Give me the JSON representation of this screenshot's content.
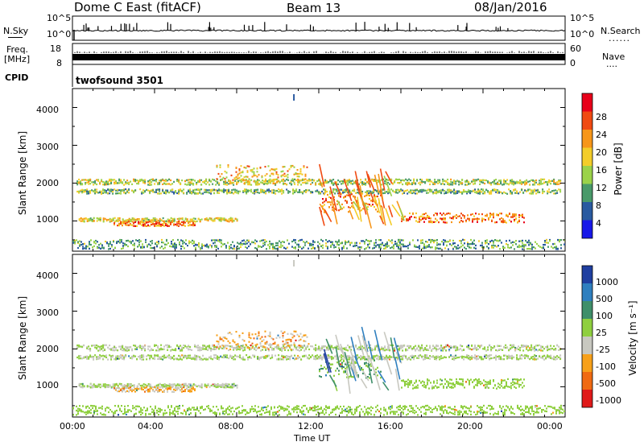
{
  "header": {
    "station": "Dome C East (fitACF)",
    "beam": "Beam 13",
    "date": "08/Jan/2016"
  },
  "strips": {
    "nsky_label": "N.Sky",
    "nsky_ticks": [
      "10^5",
      "10^0"
    ],
    "nsearch_label": "N.Search",
    "nsearch_ticks": [
      "10^5",
      "10^0"
    ],
    "freq_label_1": "Freq.",
    "freq_label_2": "[MHz]",
    "freq_ticks": [
      "18",
      "8"
    ],
    "nave_label": "Nave",
    "nave_ticks": [
      "60",
      "0"
    ],
    "cpid_label": "CPID",
    "cpid_value": "twofsound 3501",
    "dots": "......"
  },
  "axes": {
    "ylabel": "Slant Range [km]",
    "yticks": [
      "4000",
      "3000",
      "2000",
      "1000"
    ],
    "xticks": [
      "00:00",
      "04:00",
      "08:00",
      "12:00",
      "16:00",
      "20:00",
      "00:00"
    ],
    "xlabel": "Time UT"
  },
  "colorbars": {
    "power": {
      "label": "Power [dB]",
      "ticks": [
        "28",
        "24",
        "20",
        "16",
        "12",
        "8",
        "4"
      ],
      "colors": [
        "#e8001a",
        "#f04a12",
        "#f7961a",
        "#f3cd2a",
        "#9bd24a",
        "#4a9a6a",
        "#2a5aa0",
        "#1818e8"
      ]
    },
    "velocity": {
      "label": "Velocity [m s⁻¹]",
      "ticks": [
        "1000",
        "500",
        "100",
        "25",
        "-25",
        "-100",
        "-500",
        "-1000"
      ],
      "colors": [
        "#1f3fa0",
        "#2f7fbf",
        "#3f8f6a",
        "#8fcf3f",
        "#c8c8c0",
        "#f7a01a",
        "#f06a12",
        "#e01a1a"
      ]
    }
  },
  "chart_data": [
    {
      "type": "heatmap",
      "title": "Power [dB]",
      "xlabel": "Time UT",
      "ylabel": "Slant Range [km]",
      "xlim": [
        "00:00",
        "00:00"
      ],
      "ylim": [
        200,
        4500
      ],
      "colorbar": {
        "label": "Power [dB]",
        "range": [
          0,
          30
        ],
        "ticks": [
          4,
          8,
          12,
          16,
          20,
          24,
          28
        ]
      },
      "bands": [
        {
          "t_start": 0.2,
          "t_end": 23.8,
          "r_center": 1800,
          "r_width": 120,
          "value": 12
        },
        {
          "t_start": 0.2,
          "t_end": 23.8,
          "r_center": 2050,
          "r_width": 150,
          "value": 14
        },
        {
          "t_start": 0.3,
          "t_end": 8.0,
          "r_center": 1050,
          "r_width": 100,
          "value": 16
        },
        {
          "t_start": 2.0,
          "t_end": 6.0,
          "r_center": 950,
          "r_width": 130,
          "value": 22
        },
        {
          "t_start": 7.0,
          "t_end": 11.5,
          "r_center": 2250,
          "r_width": 500,
          "value": 18
        },
        {
          "t_start": 12.0,
          "t_end": 15.0,
          "r_center": 1500,
          "r_width": 500,
          "value": 22
        },
        {
          "t_start": 16.0,
          "t_end": 22.0,
          "r_center": 1100,
          "r_width": 250,
          "value": 22
        },
        {
          "t_start": 0.0,
          "t_end": 24.0,
          "r_center": 400,
          "r_width": 250,
          "value": 10
        }
      ]
    },
    {
      "type": "heatmap",
      "title": "Velocity [m s⁻¹]",
      "xlabel": "Time UT",
      "ylabel": "Slant Range [km]",
      "xlim": [
        "00:00",
        "00:00"
      ],
      "ylim": [
        200,
        4500
      ],
      "colorbar": {
        "label": "Velocity [m s⁻¹]",
        "range": [
          -1000,
          1000
        ],
        "ticks": [
          -1000,
          -500,
          -100,
          -25,
          25,
          100,
          500,
          1000
        ]
      },
      "bands": [
        {
          "t_start": 0.2,
          "t_end": 23.8,
          "r_center": 1800,
          "r_width": 120,
          "value": 0
        },
        {
          "t_start": 0.2,
          "t_end": 23.8,
          "r_center": 2050,
          "r_width": 150,
          "value": 0
        },
        {
          "t_start": 0.3,
          "t_end": 8.0,
          "r_center": 1050,
          "r_width": 100,
          "value": 0
        },
        {
          "t_start": 2.0,
          "t_end": 6.0,
          "r_center": 950,
          "r_width": 130,
          "value": -300
        },
        {
          "t_start": 7.0,
          "t_end": 11.5,
          "r_center": 2250,
          "r_width": 500,
          "value": -300
        },
        {
          "t_start": 12.0,
          "t_end": 15.0,
          "r_center": 1500,
          "r_width": 500,
          "value": 200
        },
        {
          "t_start": 16.0,
          "t_end": 22.0,
          "r_center": 1100,
          "r_width": 250,
          "value": 100
        },
        {
          "t_start": 0.0,
          "t_end": 24.0,
          "r_center": 400,
          "r_width": 250,
          "value": 50
        }
      ]
    }
  ]
}
